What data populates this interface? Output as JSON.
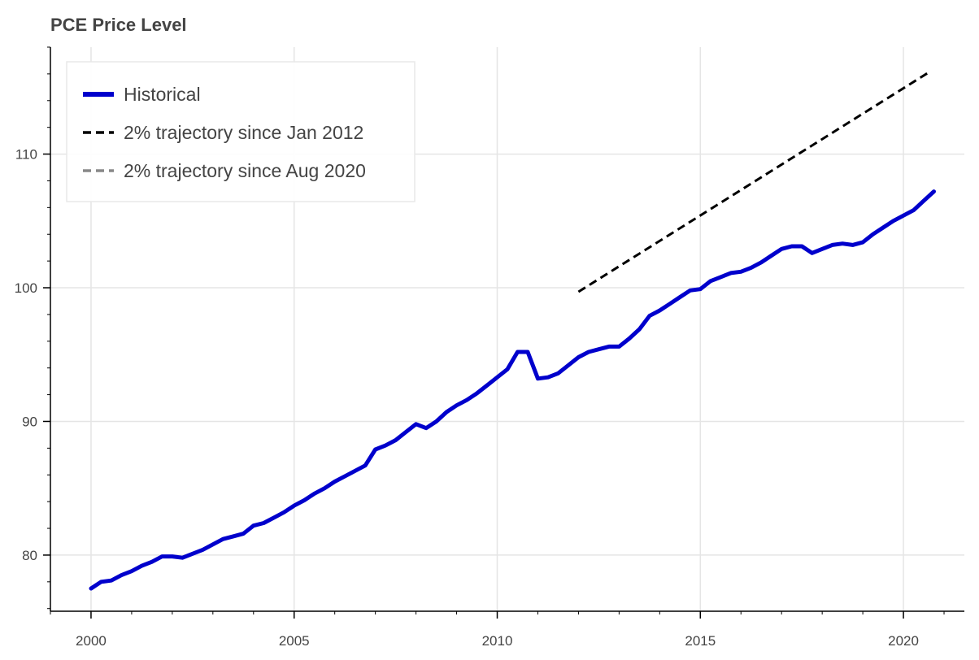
{
  "chart_data": {
    "type": "line",
    "title": "PCE Price Level",
    "xlabel": "",
    "ylabel": "",
    "xlim": [
      1999.0,
      2021.5
    ],
    "ylim": [
      75.8,
      118.0
    ],
    "x_ticks": [
      2000,
      2005,
      2010,
      2015,
      2020
    ],
    "y_ticks": [
      80,
      90,
      100,
      110
    ],
    "grid": true,
    "legend_position": "top-left",
    "series": [
      {
        "name": "Historical",
        "color": "#0000cc",
        "style": "solid",
        "points": [
          [
            2000.0,
            77.5
          ],
          [
            2000.25,
            78.0
          ],
          [
            2000.5,
            78.1
          ],
          [
            2000.75,
            78.5
          ],
          [
            2001.0,
            78.8
          ],
          [
            2001.25,
            79.2
          ],
          [
            2001.5,
            79.5
          ],
          [
            2001.75,
            79.9
          ],
          [
            2002.0,
            79.9
          ],
          [
            2002.25,
            79.8
          ],
          [
            2002.5,
            80.1
          ],
          [
            2002.75,
            80.4
          ],
          [
            2003.0,
            80.8
          ],
          [
            2003.25,
            81.2
          ],
          [
            2003.5,
            81.4
          ],
          [
            2003.75,
            81.6
          ],
          [
            2004.0,
            82.2
          ],
          [
            2004.25,
            82.4
          ],
          [
            2004.5,
            82.8
          ],
          [
            2004.75,
            83.2
          ],
          [
            2005.0,
            83.7
          ],
          [
            2005.25,
            84.1
          ],
          [
            2005.5,
            84.6
          ],
          [
            2005.75,
            85.0
          ],
          [
            2006.0,
            85.5
          ],
          [
            2006.25,
            85.9
          ],
          [
            2006.5,
            86.3
          ],
          [
            2006.75,
            86.7
          ],
          [
            2007.0,
            87.9
          ],
          [
            2007.25,
            88.2
          ],
          [
            2007.5,
            88.6
          ],
          [
            2007.75,
            89.2
          ],
          [
            2008.0,
            89.8
          ],
          [
            2008.25,
            89.5
          ],
          [
            2008.5,
            90.0
          ],
          [
            2008.75,
            90.7
          ],
          [
            2009.0,
            91.2
          ],
          [
            2009.25,
            91.6
          ],
          [
            2009.5,
            92.1
          ],
          [
            2009.75,
            92.7
          ],
          [
            2010.0,
            93.3
          ],
          [
            2010.25,
            93.9
          ],
          [
            2010.5,
            95.2
          ],
          [
            2010.75,
            95.2
          ],
          [
            2011.0,
            93.2
          ],
          [
            2011.25,
            93.3
          ],
          [
            2011.5,
            93.6
          ],
          [
            2011.75,
            94.2
          ],
          [
            2012.0,
            94.8
          ],
          [
            2012.25,
            95.2
          ],
          [
            2012.5,
            95.4
          ],
          [
            2012.75,
            95.6
          ],
          [
            2013.0,
            95.6
          ],
          [
            2013.25,
            96.2
          ],
          [
            2013.5,
            96.9
          ],
          [
            2013.75,
            97.9
          ],
          [
            2014.0,
            98.3
          ],
          [
            2014.25,
            98.8
          ],
          [
            2014.5,
            99.3
          ],
          [
            2014.75,
            99.8
          ],
          [
            2015.0,
            99.9
          ],
          [
            2015.25,
            100.5
          ],
          [
            2015.5,
            100.8
          ],
          [
            2015.75,
            101.1
          ],
          [
            2016.0,
            101.2
          ],
          [
            2016.25,
            101.5
          ],
          [
            2016.5,
            101.9
          ],
          [
            2016.75,
            102.4
          ],
          [
            2017.0,
            102.9
          ],
          [
            2017.25,
            103.1
          ],
          [
            2017.5,
            103.1
          ],
          [
            2017.75,
            102.6
          ],
          [
            2018.0,
            102.9
          ],
          [
            2018.25,
            103.2
          ],
          [
            2018.5,
            103.3
          ],
          [
            2018.75,
            103.2
          ],
          [
            2019.0,
            103.4
          ],
          [
            2019.25,
            104.0
          ],
          [
            2019.5,
            104.5
          ],
          [
            2019.75,
            105.0
          ],
          [
            2020.0,
            105.4
          ],
          [
            2020.25,
            105.8
          ],
          [
            2020.5,
            106.5
          ],
          [
            2020.75,
            107.2
          ]
        ]
      },
      {
        "name": "2% trajectory since Jan 2012",
        "color": "#000000",
        "style": "dashed",
        "points": [
          [
            2012.0,
            99.7
          ],
          [
            2020.67,
            116.2
          ]
        ]
      },
      {
        "name": "2% trajectory since Aug 2020",
        "color": "#888888",
        "style": "dashed",
        "points": []
      }
    ]
  }
}
